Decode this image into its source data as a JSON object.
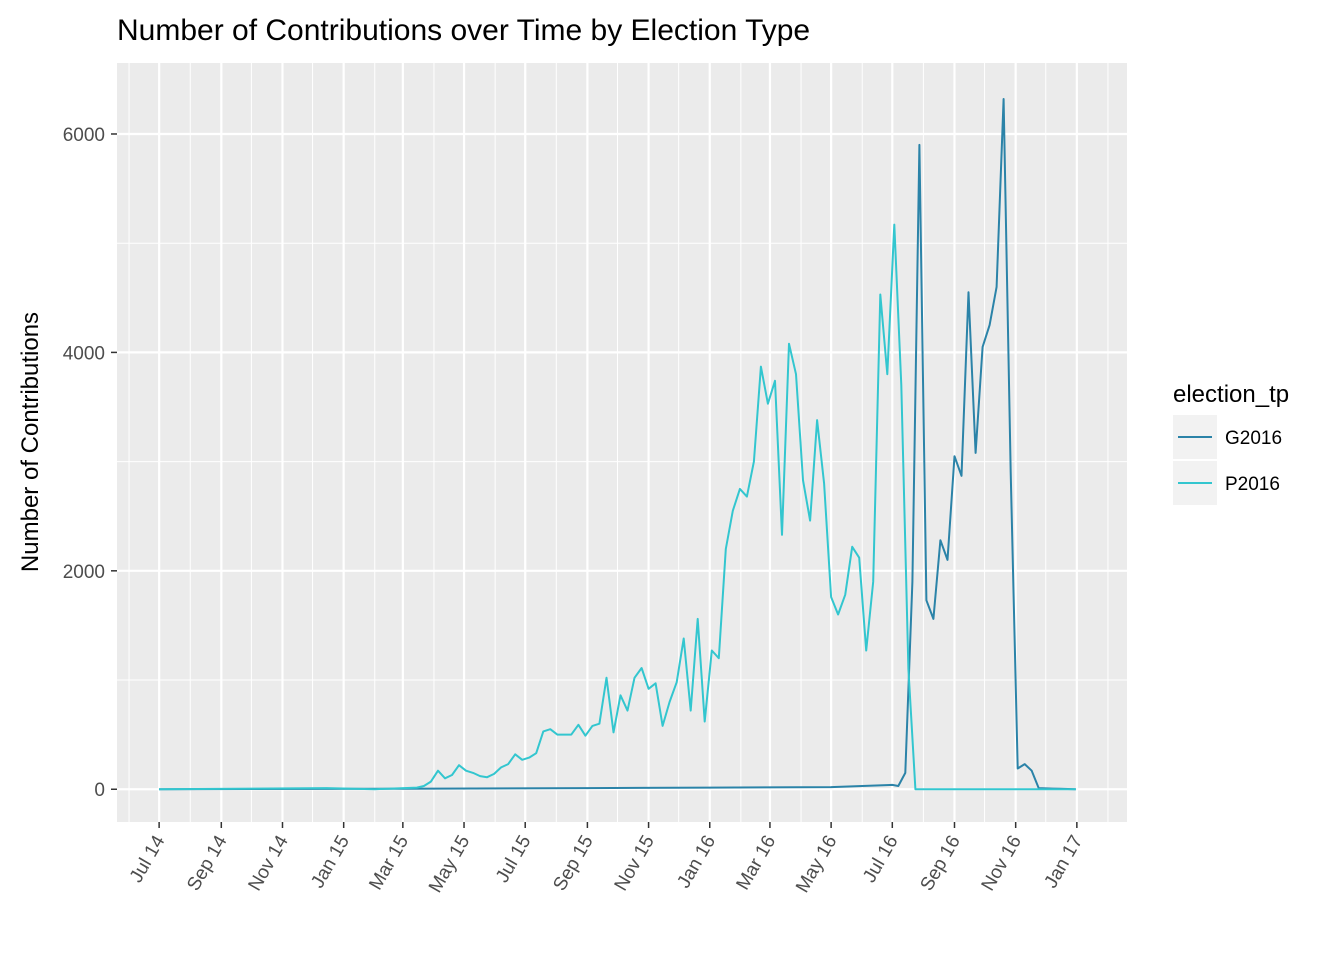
{
  "chart_data": {
    "type": "line",
    "title": "Number of Contributions over Time by Election Type",
    "xlabel": "",
    "ylabel": "Number of Contributions",
    "x_ticks": [
      "Jul 14",
      "Sep 14",
      "Nov 14",
      "Jan 15",
      "Mar 15",
      "May 15",
      "Jul 15",
      "Sep 15",
      "Nov 15",
      "Jan 16",
      "Mar 16",
      "May 16",
      "Jul 16",
      "Sep 16",
      "Nov 16",
      "Jan 17"
    ],
    "y_ticks": [
      0,
      2000,
      4000,
      6000
    ],
    "xlim": [
      "2014-05-20",
      "2017-02-20"
    ],
    "ylim": [
      -300,
      6650
    ],
    "grid": true,
    "legend": {
      "title": "election_tp",
      "position": "right"
    },
    "series": [
      {
        "name": "G2016",
        "color": "#2b83a8",
        "x": [
          "2014-07-01",
          "2015-03-01",
          "2015-09-01",
          "2016-01-01",
          "2016-05-01",
          "2016-06-01",
          "2016-07-01",
          "2016-07-07",
          "2016-07-14",
          "2016-07-21",
          "2016-07-28",
          "2016-08-04",
          "2016-08-11",
          "2016-08-18",
          "2016-08-25",
          "2016-09-01",
          "2016-09-08",
          "2016-09-15",
          "2016-09-22",
          "2016-09-29",
          "2016-10-06",
          "2016-10-13",
          "2016-10-20",
          "2016-10-27",
          "2016-11-03",
          "2016-11-10",
          "2016-11-17",
          "2016-11-24",
          "2016-12-01",
          "2016-12-08",
          "2016-12-15",
          "2016-12-31"
        ],
        "values": [
          0,
          5,
          10,
          15,
          20,
          30,
          40,
          30,
          150,
          1900,
          5900,
          1730,
          1560,
          2280,
          2100,
          3050,
          2870,
          4550,
          3080,
          4050,
          4250,
          4600,
          6320,
          2900,
          190,
          230,
          170,
          10,
          8,
          6,
          5,
          0
        ]
      },
      {
        "name": "P2016",
        "color": "#33c6cf",
        "x": [
          "2014-07-01",
          "2014-12-15",
          "2015-02-01",
          "2015-03-15",
          "2015-03-22",
          "2015-03-29",
          "2015-04-05",
          "2015-04-12",
          "2015-04-19",
          "2015-04-26",
          "2015-05-03",
          "2015-05-10",
          "2015-05-17",
          "2015-05-24",
          "2015-05-31",
          "2015-06-07",
          "2015-06-14",
          "2015-06-21",
          "2015-06-28",
          "2015-07-05",
          "2015-07-12",
          "2015-07-19",
          "2015-07-26",
          "2015-08-02",
          "2015-08-09",
          "2015-08-16",
          "2015-08-23",
          "2015-08-30",
          "2015-09-06",
          "2015-09-13",
          "2015-09-20",
          "2015-09-27",
          "2015-10-04",
          "2015-10-11",
          "2015-10-18",
          "2015-10-25",
          "2015-11-01",
          "2015-11-08",
          "2015-11-15",
          "2015-11-22",
          "2015-11-29",
          "2015-12-06",
          "2015-12-13",
          "2015-12-20",
          "2015-12-27",
          "2016-01-03",
          "2016-01-10",
          "2016-01-17",
          "2016-01-24",
          "2016-01-31",
          "2016-02-07",
          "2016-02-14",
          "2016-02-21",
          "2016-02-28",
          "2016-03-06",
          "2016-03-13",
          "2016-03-20",
          "2016-03-27",
          "2016-04-03",
          "2016-04-10",
          "2016-04-17",
          "2016-04-24",
          "2016-05-01",
          "2016-05-08",
          "2016-05-15",
          "2016-05-22",
          "2016-05-29",
          "2016-06-05",
          "2016-06-12",
          "2016-06-19",
          "2016-06-26",
          "2016-07-03",
          "2016-07-10",
          "2016-07-17",
          "2016-07-24",
          "2016-08-01",
          "2016-12-31"
        ],
        "values": [
          0,
          10,
          0,
          15,
          30,
          70,
          170,
          100,
          130,
          220,
          170,
          150,
          120,
          110,
          140,
          200,
          230,
          320,
          270,
          290,
          330,
          530,
          550,
          500,
          500,
          500,
          590,
          490,
          580,
          600,
          1020,
          520,
          860,
          720,
          1020,
          1110,
          920,
          970,
          580,
          800,
          980,
          1380,
          720,
          1560,
          620,
          1270,
          1200,
          2200,
          2550,
          2750,
          2680,
          3000,
          3870,
          3530,
          3740,
          2330,
          4080,
          3800,
          2830,
          2460,
          3380,
          2800,
          1760,
          1600,
          1780,
          2220,
          2120,
          1270,
          1900,
          4530,
          3800,
          5170,
          3700,
          1100,
          0,
          0,
          0
        ]
      }
    ]
  }
}
